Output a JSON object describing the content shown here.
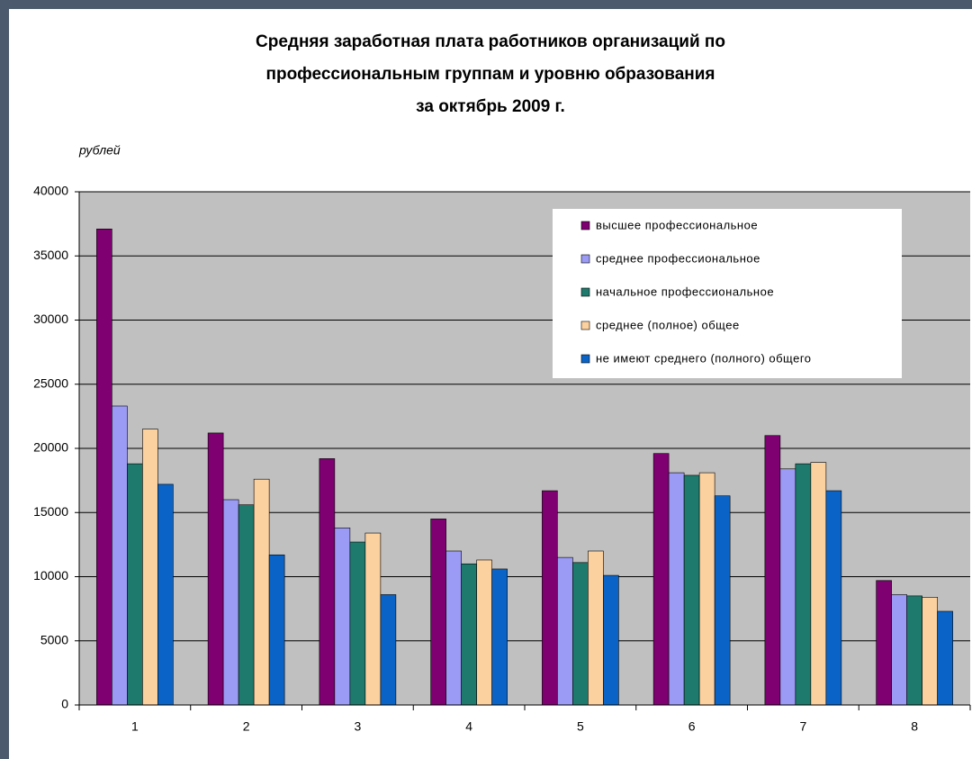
{
  "chart_data": {
    "type": "bar",
    "title": [
      "Средняя заработная плата работников организаций по",
      "профессиональным группам и уровню образования",
      "за октябрь 2009 г."
    ],
    "y_label": "рублей",
    "categories": [
      "1",
      "2",
      "3",
      "4",
      "5",
      "6",
      "7",
      "8"
    ],
    "series": [
      {
        "name": "высшее профессиональное",
        "color": "#7e0071",
        "values": [
          37100,
          21200,
          19200,
          14500,
          16700,
          19600,
          21000,
          9700
        ]
      },
      {
        "name": "среднее профессиональное",
        "color": "#9b9bf5",
        "values": [
          23300,
          16000,
          13800,
          12000,
          11500,
          18100,
          18400,
          8600
        ]
      },
      {
        "name": "начальное профессиональное",
        "color": "#1e7a6c",
        "values": [
          18800,
          15600,
          12700,
          11000,
          11100,
          17900,
          18800,
          8500
        ]
      },
      {
        "name": "среднее (полное) общее",
        "color": "#fcd1a0",
        "values": [
          21500,
          17600,
          13400,
          11300,
          12000,
          18100,
          18900,
          8400
        ]
      },
      {
        "name": "не имеют среднего (полного) общего",
        "color": "#0a64c8",
        "values": [
          17200,
          11700,
          8600,
          10600,
          10100,
          16300,
          16700,
          7300
        ]
      }
    ],
    "ylim": [
      0,
      40000
    ],
    "yticks": [
      0,
      5000,
      10000,
      15000,
      20000,
      25000,
      30000,
      35000,
      40000
    ],
    "grid": true
  }
}
